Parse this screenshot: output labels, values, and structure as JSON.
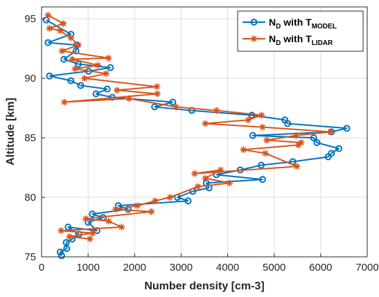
{
  "chart_data": {
    "type": "line",
    "xlabel": "Number density [cm-3]",
    "ylabel": "Altitude [km]",
    "xlim": [
      0,
      7000
    ],
    "ylim": [
      75,
      96
    ],
    "xticks": [
      "0",
      "1000",
      "2000",
      "3000",
      "4000",
      "5000",
      "6000",
      "7000"
    ],
    "yticks": [
      "75",
      "80",
      "85",
      "90",
      "95"
    ],
    "grid": true,
    "legend_position": "top-right",
    "legend": [
      {
        "main": "N",
        "sub1": "D",
        "mid": " with T",
        "sub2": "MODEL"
      },
      {
        "main": "N",
        "sub1": "D",
        "mid": " with T",
        "sub2": "LIDAR"
      }
    ],
    "series": [
      {
        "color": "#0072BD",
        "marker": "circle",
        "points": [
          [
            100,
            94.9
          ],
          [
            630,
            93.7
          ],
          [
            140,
            93.0
          ],
          [
            760,
            92.8
          ],
          [
            740,
            92.3
          ],
          [
            480,
            91.6
          ],
          [
            790,
            91.2
          ],
          [
            1480,
            90.9
          ],
          [
            1010,
            90.6
          ],
          [
            170,
            90.2
          ],
          [
            630,
            89.8
          ],
          [
            840,
            89.4
          ],
          [
            1410,
            89.1
          ],
          [
            1170,
            88.7
          ],
          [
            1520,
            88.4
          ],
          [
            2820,
            88.0
          ],
          [
            2430,
            87.6
          ],
          [
            3230,
            87.3
          ],
          [
            4520,
            86.9
          ],
          [
            5230,
            86.5
          ],
          [
            5290,
            86.2
          ],
          [
            6560,
            85.8
          ],
          [
            6230,
            85.5
          ],
          [
            4540,
            85.2
          ],
          [
            5850,
            85.0
          ],
          [
            5920,
            84.6
          ],
          [
            6390,
            84.1
          ],
          [
            6230,
            83.7
          ],
          [
            6160,
            83.4
          ],
          [
            5400,
            83.0
          ],
          [
            4720,
            82.7
          ],
          [
            4270,
            82.3
          ],
          [
            3760,
            81.9
          ],
          [
            4750,
            81.5
          ],
          [
            3540,
            81.2
          ],
          [
            3600,
            80.8
          ],
          [
            3250,
            80.5
          ],
          [
            2920,
            80.0
          ],
          [
            3150,
            79.7
          ],
          [
            1650,
            79.3
          ],
          [
            1860,
            79.0
          ],
          [
            1090,
            78.6
          ],
          [
            1320,
            78.3
          ],
          [
            1000,
            77.9
          ],
          [
            1190,
            77.2
          ],
          [
            570,
            77.5
          ],
          [
            800,
            76.9
          ],
          [
            660,
            76.5
          ],
          [
            530,
            76.2
          ],
          [
            540,
            75.7
          ],
          [
            400,
            75.4
          ],
          [
            430,
            75.1
          ]
        ]
      },
      {
        "color": "#D95319",
        "marker": "star",
        "points": [
          [
            140,
            95.3
          ],
          [
            470,
            94.6
          ],
          [
            170,
            94.2
          ],
          [
            400,
            94.0
          ],
          [
            630,
            93.4
          ],
          [
            790,
            92.8
          ],
          [
            440,
            92.3
          ],
          [
            1440,
            91.7
          ],
          [
            660,
            91.6
          ],
          [
            1210,
            91.1
          ],
          [
            720,
            90.8
          ],
          [
            1390,
            90.4
          ],
          [
            920,
            90.0
          ],
          [
            2480,
            89.3
          ],
          [
            1620,
            89.0
          ],
          [
            2490,
            88.7
          ],
          [
            490,
            88.0
          ],
          [
            1880,
            88.3
          ],
          [
            2890,
            87.6
          ],
          [
            3760,
            87.3
          ],
          [
            4730,
            86.9
          ],
          [
            4440,
            86.5
          ],
          [
            3520,
            86.2
          ],
          [
            4750,
            85.9
          ],
          [
            6210,
            85.5
          ],
          [
            5470,
            85.2
          ],
          [
            4840,
            84.8
          ],
          [
            5580,
            84.6
          ],
          [
            5520,
            84.4
          ],
          [
            4340,
            84.0
          ],
          [
            4810,
            83.7
          ],
          [
            5490,
            82.6
          ],
          [
            3290,
            82.0
          ],
          [
            3850,
            82.3
          ],
          [
            3520,
            81.6
          ],
          [
            4040,
            81.2
          ],
          [
            3360,
            80.9
          ],
          [
            2760,
            80.0
          ],
          [
            2440,
            79.7
          ],
          [
            2060,
            79.3
          ],
          [
            1590,
            79.0
          ],
          [
            2360,
            78.8
          ],
          [
            950,
            78.2
          ],
          [
            1440,
            78.0
          ],
          [
            1720,
            77.5
          ],
          [
            420,
            77.2
          ],
          [
            1100,
            77.0
          ],
          [
            600,
            76.7
          ],
          [
            1040,
            76.5
          ]
        ]
      }
    ]
  }
}
